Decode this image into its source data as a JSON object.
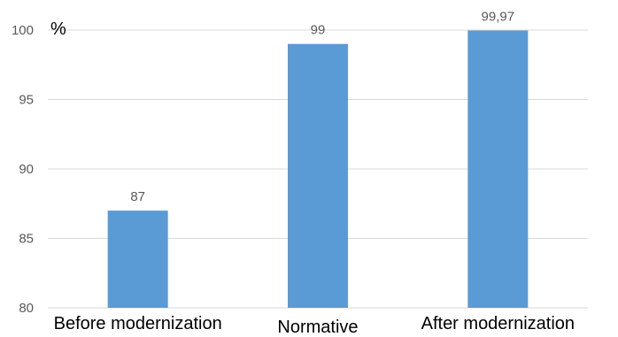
{
  "chart_data": {
    "type": "bar",
    "categories": [
      "Before modernization",
      "Normative",
      "After modernization"
    ],
    "values": [
      87,
      99,
      99.97
    ],
    "data_labels": [
      "87",
      "99",
      "99,97"
    ],
    "ylabel": "%",
    "ylim": [
      80,
      100
    ],
    "yticks": [
      80,
      85,
      90,
      95,
      100
    ],
    "ytick_labels": [
      "80",
      "85",
      "90",
      "95",
      "100"
    ],
    "grid": true,
    "legend": "none",
    "bar_color": "#5b9bd5"
  }
}
